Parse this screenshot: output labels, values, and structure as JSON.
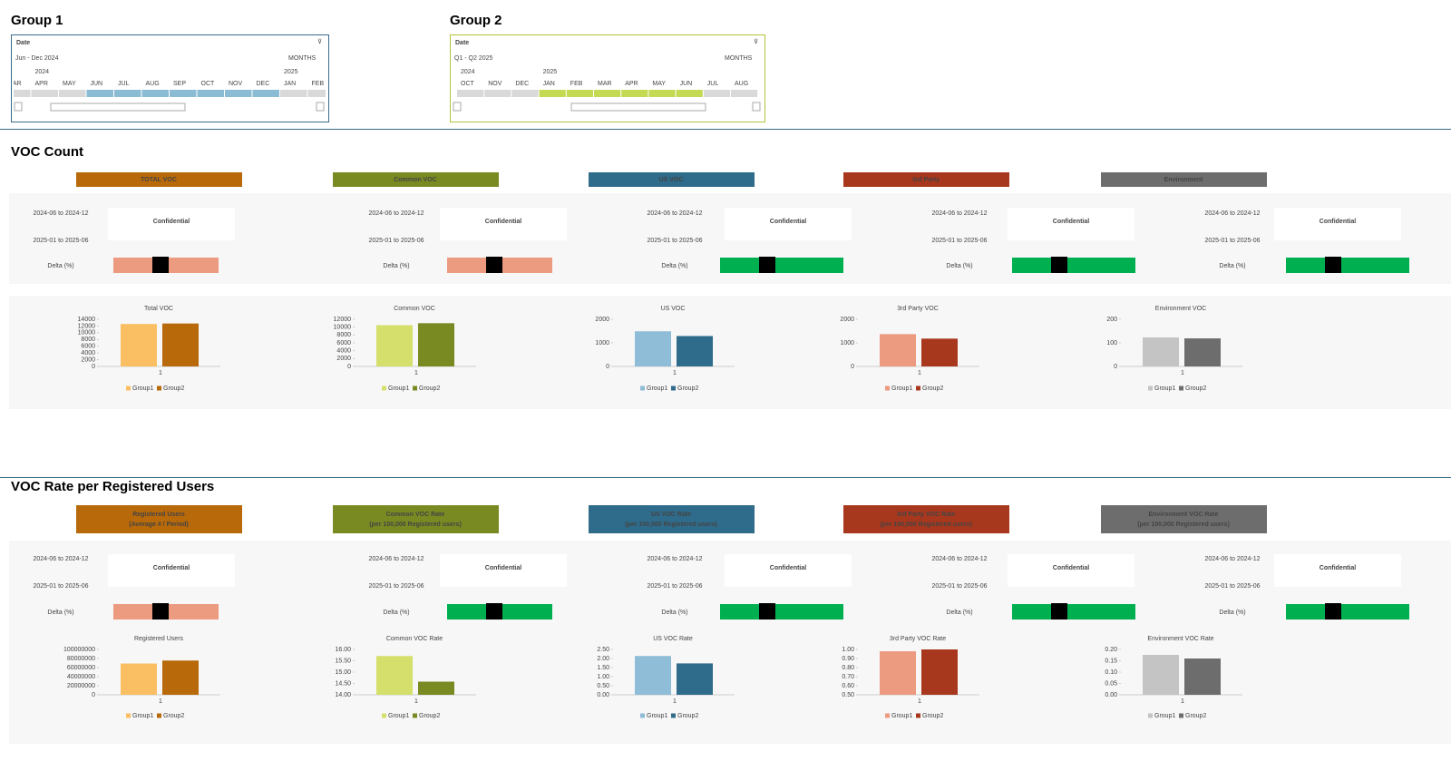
{
  "slicers": [
    {
      "heading": "Group 1",
      "label": "Date",
      "period": "Jun - Dec 2024",
      "unit": "MONTHS",
      "years": [
        "2024",
        "2025"
      ],
      "months": [
        "MAR",
        "APR",
        "MAY",
        "JUN",
        "JUL",
        "AUG",
        "SEP",
        "OCT",
        "NOV",
        "DEC",
        "JAN",
        "FEB"
      ],
      "border_color": "#3a6b8a",
      "selection_color": "#8bbcd6"
    },
    {
      "heading": "Group 2",
      "label": "Date",
      "period": "Q1 - Q2 2025",
      "unit": "MONTHS",
      "years": [
        "2024",
        "2025"
      ],
      "months": [
        "OCT",
        "NOV",
        "DEC",
        "JAN",
        "FEB",
        "MAR",
        "APR",
        "MAY",
        "JUN",
        "JUL",
        "AUG"
      ],
      "border_color": "#b6c33a",
      "selection_color": "#c4da52"
    }
  ],
  "sections": [
    {
      "title": "VOC Count",
      "cards": [
        {
          "header": [
            "TOTAL VOC"
          ],
          "color": "#b8690a",
          "rows": [
            "2024-06 to 2024-12",
            "2025-01 to 2025-06",
            "Delta (%)"
          ],
          "mask": "Confidential",
          "delta_color": "#ec9a80",
          "chart": {
            "type": "bar",
            "title": "Total VOC",
            "categories": [
              "1"
            ],
            "ylim": [
              0,
              14000
            ],
            "yticks": [
              0,
              2000,
              4000,
              6000,
              8000,
              10000,
              12000,
              14000
            ],
            "series": [
              {
                "name": "Group1",
                "color": "#fbbf63",
                "values": [
                  12600
                ]
              },
              {
                "name": "Group2",
                "color": "#b8690a",
                "values": [
                  12750
                ]
              }
            ]
          }
        },
        {
          "header": [
            "Common VOC"
          ],
          "color": "#7a8a22",
          "rows": [
            "2024-06 to 2024-12",
            "2025-01 to 2025-06",
            "Delta (%)"
          ],
          "mask": "Confidential",
          "delta_color": "#ec9a80",
          "chart": {
            "type": "bar",
            "title": "Common VOC",
            "categories": [
              "1"
            ],
            "ylim": [
              0,
              12000
            ],
            "yticks": [
              0,
              2000,
              4000,
              6000,
              8000,
              10000,
              12000
            ],
            "series": [
              {
                "name": "Group1",
                "color": "#d4e06b",
                "values": [
                  10500
                ]
              },
              {
                "name": "Group2",
                "color": "#7a8a22",
                "values": [
                  11000
                ]
              }
            ]
          }
        },
        {
          "header": [
            "US VOC"
          ],
          "color": "#2f6b8a",
          "rows": [
            "2024-06 to 2024-12",
            "2025-01 to 2025-06",
            "Delta (%)"
          ],
          "mask": "Confidential",
          "delta_color": "#00b050",
          "chart": {
            "type": "bar",
            "title": "US VOC",
            "categories": [
              "1"
            ],
            "ylim": [
              0,
              2000
            ],
            "yticks": [
              0,
              1000,
              2000
            ],
            "series": [
              {
                "name": "Group1",
                "color": "#8fbcd6",
                "values": [
                  1490
                ]
              },
              {
                "name": "Group2",
                "color": "#2f6b8a",
                "values": [
                  1290
                ]
              }
            ]
          }
        },
        {
          "header": [
            "3rd Party"
          ],
          "color": "#a8381d",
          "rows": [
            "2024-06 to 2024-12",
            "2025-01 to 2025-06",
            "Delta (%)"
          ],
          "mask": "Confidential",
          "delta_color": "#00b050",
          "chart": {
            "type": "bar",
            "title": "3rd Party VOC",
            "categories": [
              "1"
            ],
            "ylim": [
              0,
              2000
            ],
            "yticks": [
              0,
              1000,
              2000
            ],
            "series": [
              {
                "name": "Group1",
                "color": "#ec9a80",
                "values": [
                  1370
                ]
              },
              {
                "name": "Group2",
                "color": "#a8381d",
                "values": [
                  1180
                ]
              }
            ]
          }
        },
        {
          "header": [
            "Environment"
          ],
          "color": "#6d6d6d",
          "rows": [
            "2024-06 to 2024-12",
            "2025-01 to 2025-06",
            "Delta (%)"
          ],
          "mask": "Confidential",
          "delta_color": "#00b050",
          "chart": {
            "type": "bar",
            "title": "Environment VOC",
            "categories": [
              "1"
            ],
            "ylim": [
              0,
              200
            ],
            "yticks": [
              0,
              100,
              200
            ],
            "series": [
              {
                "name": "Group1",
                "color": "#c4c4c4",
                "values": [
                  123
                ]
              },
              {
                "name": "Group2",
                "color": "#6d6d6d",
                "values": [
                  119
                ]
              }
            ]
          }
        }
      ]
    },
    {
      "title": "VOC Rate per Registered Users",
      "cards": [
        {
          "header": [
            "Registered Users",
            "(Average # / Period)"
          ],
          "color": "#b8690a",
          "rows": [
            "2024-06 to 2024-12",
            "2025-01 to 2025-06",
            "Delta (%)"
          ],
          "mask": "Confidential",
          "delta_color": "#ec9a80",
          "chart": {
            "type": "bar",
            "title": "Registered Users",
            "categories": [
              "1"
            ],
            "ylim": [
              0,
              100000000
            ],
            "yticks": [
              0,
              20000000,
              40000000,
              60000000,
              80000000,
              100000000
            ],
            "series": [
              {
                "name": "Group1",
                "color": "#fbbf63",
                "values": [
                  69000000
                ]
              },
              {
                "name": "Group2",
                "color": "#b8690a",
                "values": [
                  75500000
                ]
              }
            ]
          }
        },
        {
          "header": [
            "Common VOC Rate",
            "(per 100,000 Registered users)"
          ],
          "color": "#7a8a22",
          "rows": [
            "2024-06 to 2024-12",
            "2025-01 to 2025-06",
            "Delta (%)"
          ],
          "mask": "Confidential",
          "delta_color": "#00b050",
          "chart": {
            "type": "bar",
            "title": "Common VOC Rate",
            "categories": [
              "1"
            ],
            "ylim": [
              14,
              16
            ],
            "yticks": [
              {
                "value": 14,
                "label": "14.00"
              },
              {
                "value": 14.5,
                "label": "14.50"
              },
              {
                "value": 15,
                "label": "15.00"
              },
              {
                "value": 15.5,
                "label": "15.50"
              },
              {
                "value": 16,
                "label": "16.00"
              }
            ],
            "series": [
              {
                "name": "Group1",
                "color": "#d4e06b",
                "values": [
                  15.71
                ]
              },
              {
                "name": "Group2",
                "color": "#7a8a22",
                "values": [
                  14.58
                ]
              }
            ]
          }
        },
        {
          "header": [
            "US VOC Rate",
            "(per 100,000 Registered users)"
          ],
          "color": "#2f6b8a",
          "rows": [
            "2024-06 to 2024-12",
            "2025-01 to 2025-06",
            "Delta (%)"
          ],
          "mask": "Confidential",
          "delta_color": "#00b050",
          "chart": {
            "type": "bar",
            "title": "US VOC Rate",
            "categories": [
              "1"
            ],
            "ylim": [
              0,
              2.5
            ],
            "yticks": [
              {
                "value": 0,
                "label": "0.00"
              },
              {
                "value": 0.5,
                "label": "0.50"
              },
              {
                "value": 1,
                "label": "1.00"
              },
              {
                "value": 1.5,
                "label": "1.50"
              },
              {
                "value": 2,
                "label": "2.00"
              },
              {
                "value": 2.5,
                "label": "2.50"
              }
            ],
            "series": [
              {
                "name": "Group1",
                "color": "#8fbcd6",
                "values": [
                  2.14
                ]
              },
              {
                "name": "Group2",
                "color": "#2f6b8a",
                "values": [
                  1.73
                ]
              }
            ]
          }
        },
        {
          "header": [
            "3rd Party VOC Rate",
            "(per 100,000 Registered users)"
          ],
          "color": "#a8381d",
          "rows": [
            "2024-06 to 2024-12",
            "2025-01 to 2025-06",
            "Delta (%)"
          ],
          "mask": "Confidential",
          "delta_color": "#00b050",
          "chart": {
            "type": "bar",
            "title": "3rd Party VOC Rate",
            "categories": [
              "1"
            ],
            "ylim": [
              0.5,
              1
            ],
            "yticks": [
              {
                "value": 0.5,
                "label": "0.50"
              },
              {
                "value": 0.6,
                "label": "0.60"
              },
              {
                "value": 0.7,
                "label": "0.70"
              },
              {
                "value": 0.8,
                "label": "0.80"
              },
              {
                "value": 0.9,
                "label": "0.90"
              },
              {
                "value": 1,
                "label": "1.00"
              }
            ],
            "series": [
              {
                "name": "Group1",
                "color": "#ec9a80",
                "values": [
                  0.98
                ]
              },
              {
                "name": "Group2",
                "color": "#a8381d",
                "values": [
                  1
                ]
              }
            ]
          }
        },
        {
          "header": [
            "Environment VOC Rate",
            "(per 100,000 Registered users)"
          ],
          "color": "#6d6d6d",
          "rows": [
            "2024-06 to 2024-12",
            "2025-01 to 2025-06",
            "Delta (%)"
          ],
          "mask": "Confidential",
          "delta_color": "#00b050",
          "chart": {
            "type": "bar",
            "title": "Environment VOC Rate",
            "categories": [
              "1"
            ],
            "ylim": [
              0,
              0.2
            ],
            "yticks": [
              {
                "value": 0,
                "label": "0.00"
              },
              {
                "value": 0.05,
                "label": "0.05"
              },
              {
                "value": 0.1,
                "label": "0.10"
              },
              {
                "value": 0.15,
                "label": "0.15"
              },
              {
                "value": 0.2,
                "label": "0.20"
              }
            ],
            "series": [
              {
                "name": "Group1",
                "color": "#c4c4c4",
                "values": [
                  0.176
                ]
              },
              {
                "name": "Group2",
                "color": "#6d6d6d",
                "values": [
                  0.16
                ]
              }
            ]
          }
        }
      ]
    }
  ]
}
